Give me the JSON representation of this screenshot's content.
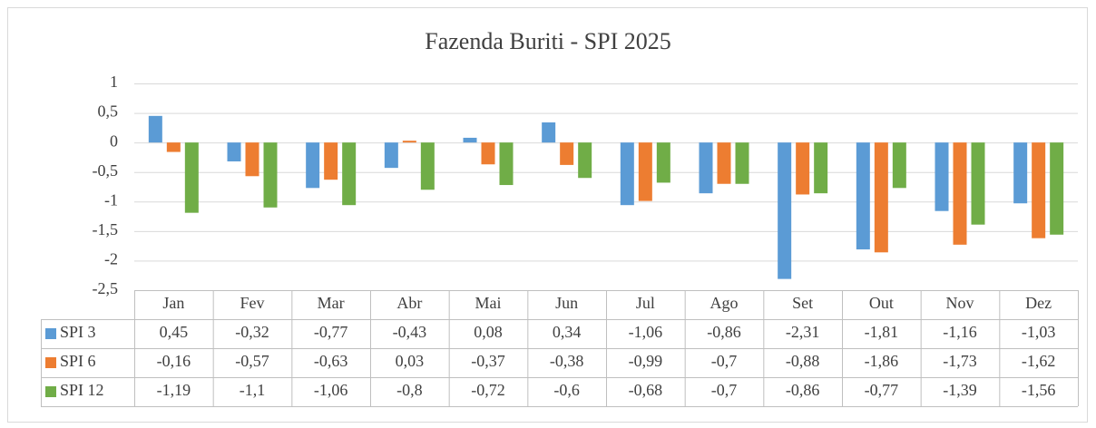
{
  "chart_data": {
    "type": "bar",
    "title": "Fazenda Buriti - SPI 2025",
    "categories": [
      "Jan",
      "Fev",
      "Mar",
      "Abr",
      "Mai",
      "Jun",
      "Jul",
      "Ago",
      "Set",
      "Out",
      "Nov",
      "Dez"
    ],
    "series": [
      {
        "name": "SPI 3",
        "color": "#5b9bd5",
        "values": [
          0.45,
          -0.32,
          -0.77,
          -0.43,
          0.08,
          0.34,
          -1.06,
          -0.86,
          -2.31,
          -1.81,
          -1.16,
          -1.03
        ],
        "value_labels": [
          "0,45",
          "-0,32",
          "-0,77",
          "-0,43",
          "0,08",
          "0,34",
          "-1,06",
          "-0,86",
          "-2,31",
          "-1,81",
          "-1,16",
          "-1,03"
        ]
      },
      {
        "name": "SPI 6",
        "color": "#ed7d31",
        "values": [
          -0.16,
          -0.57,
          -0.63,
          0.03,
          -0.37,
          -0.38,
          -0.99,
          -0.7,
          -0.88,
          -1.86,
          -1.73,
          -1.62
        ],
        "value_labels": [
          "-0,16",
          "-0,57",
          "-0,63",
          "0,03",
          "-0,37",
          "-0,38",
          "-0,99",
          "-0,7",
          "-0,88",
          "-1,86",
          "-1,73",
          "-1,62"
        ]
      },
      {
        "name": "SPI 12",
        "color": "#70ad47",
        "values": [
          -1.19,
          -1.1,
          -1.06,
          -0.8,
          -0.72,
          -0.6,
          -0.68,
          -0.7,
          -0.86,
          -0.77,
          -1.39,
          -1.56
        ],
        "value_labels": [
          "-1,19",
          "-1,1",
          "-1,06",
          "-0,8",
          "-0,72",
          "-0,6",
          "-0,68",
          "-0,7",
          "-0,86",
          "-0,77",
          "-1,39",
          "-1,56"
        ]
      }
    ],
    "ylim": [
      -2.5,
      1
    ],
    "yticks": [
      1,
      {
        "value": 0.5,
        "label": "0,5"
      },
      0,
      {
        "value": -0.5,
        "label": "-0,5"
      },
      -1,
      {
        "value": -1.5,
        "label": "-1,5"
      },
      -2,
      {
        "value": -2.5,
        "label": "-2,5"
      }
    ],
    "grid": true
  }
}
